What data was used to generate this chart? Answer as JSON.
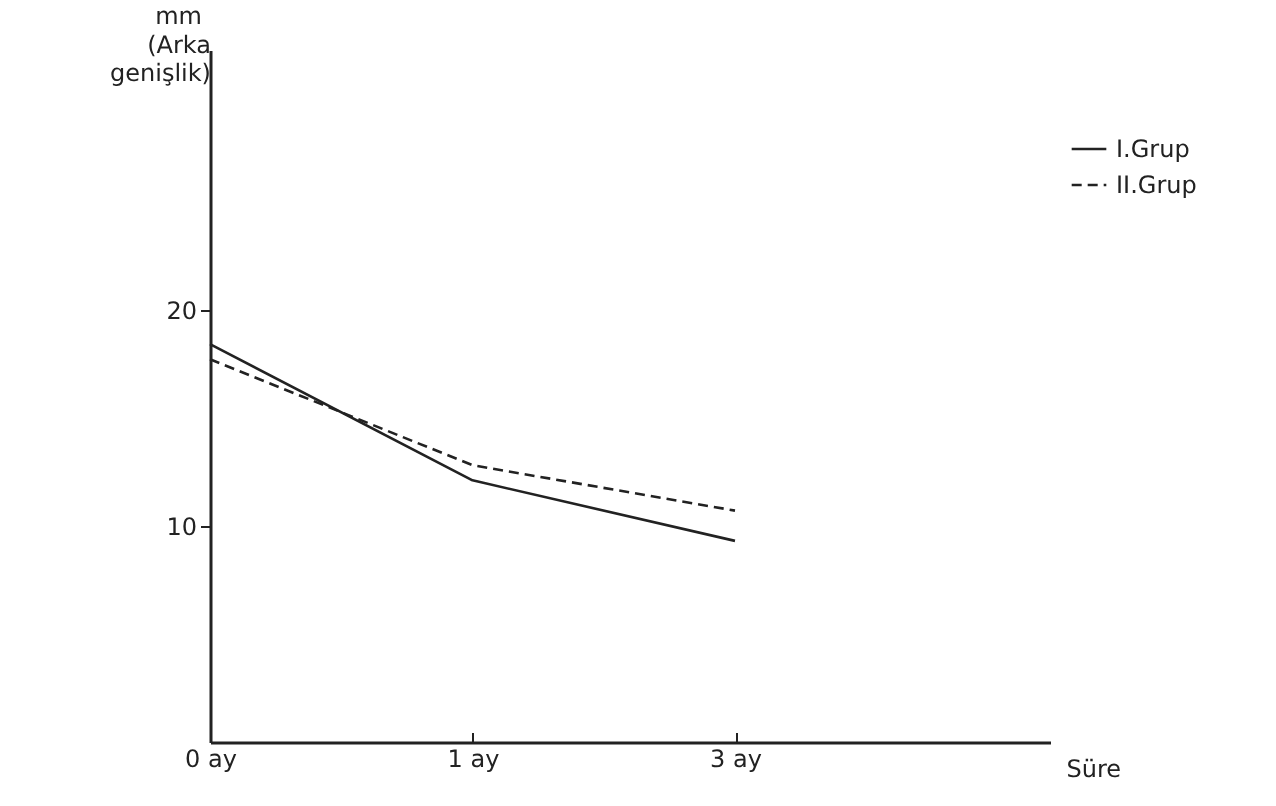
{
  "chart_data": {
    "type": "line",
    "xlabel": "Süre",
    "ylabel": "(Arka genişlik)",
    "annotations": [
      "mm"
    ],
    "categories": [
      "0 ay",
      "1 ay",
      "3 ay"
    ],
    "series": [
      {
        "name": "I.Grup",
        "color": "#222222",
        "line_style": "solid",
        "values": [
          18.4,
          12.1,
          9.3
        ]
      },
      {
        "name": "II.Grup",
        "color": "#222222",
        "line_style": "dashed",
        "values": [
          17.7,
          12.8,
          10.7
        ]
      }
    ],
    "ylim": [
      0,
      32
    ],
    "yticks": [
      10,
      20
    ],
    "grid": false,
    "legend": "top right"
  }
}
